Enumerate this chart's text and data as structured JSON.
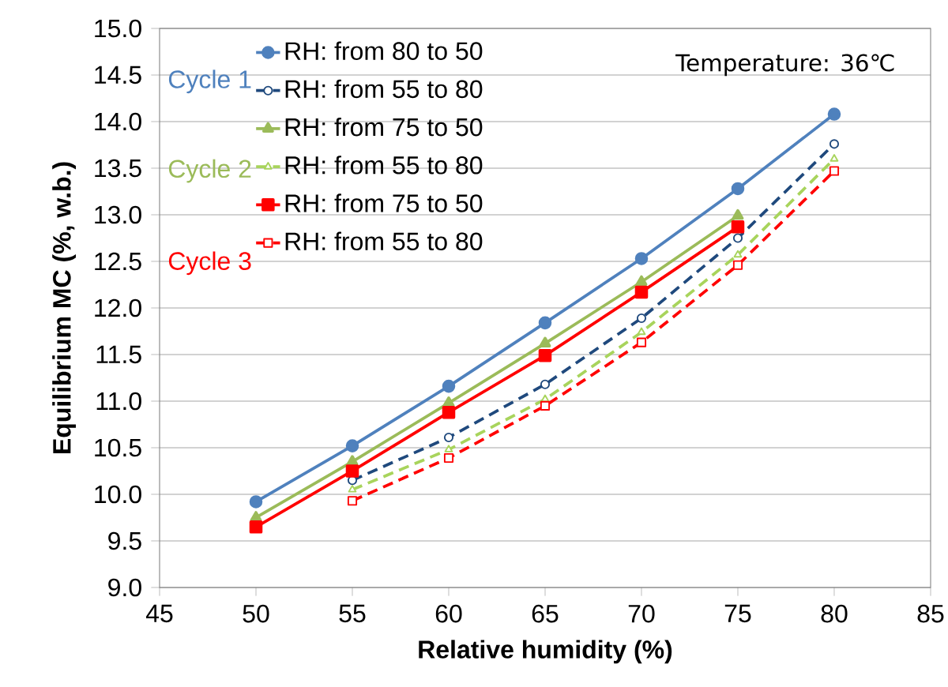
{
  "chart_data": {
    "type": "line",
    "xlabel": "Relative humidity (%)",
    "ylabel": "Equilibrium MC (%, w.b.)",
    "xlim": [
      45,
      85
    ],
    "xticks": [
      45,
      50,
      55,
      60,
      65,
      70,
      75,
      80,
      85
    ],
    "ylim": [
      9.0,
      15.0
    ],
    "yticks": [
      {
        "value": 9.0,
        "label": "9.0"
      },
      {
        "value": 9.5,
        "label": "9.5"
      },
      {
        "value": 10.0,
        "label": "10.0"
      },
      {
        "value": 10.5,
        "label": "10.5"
      },
      {
        "value": 11.0,
        "label": "11.0"
      },
      {
        "value": 11.5,
        "label": "11.5"
      },
      {
        "value": 12.0,
        "label": "12.0"
      },
      {
        "value": 12.5,
        "label": "12.5"
      },
      {
        "value": 13.0,
        "label": "13.0"
      },
      {
        "value": 13.5,
        "label": "13.5"
      },
      {
        "value": 14.0,
        "label": "14.0"
      },
      {
        "value": 14.5,
        "label": "14.5"
      },
      {
        "value": 15.0,
        "label": "15.0"
      }
    ],
    "grid": "y",
    "legend": "top left",
    "annotations": [
      "Cycle 1",
      "Cycle 2",
      "Cycle 3",
      "Temperature: 36℃"
    ],
    "series": [
      {
        "name": "RH: from 80 to 50",
        "color": "#4f81bd",
        "marker": "circle",
        "line_style": "solid",
        "x": [
          50,
          55,
          60,
          65,
          70,
          75,
          80
        ],
        "values": [
          9.92,
          10.52,
          11.16,
          11.84,
          12.53,
          13.28,
          14.08
        ]
      },
      {
        "name": "RH: from 55 to 80",
        "color": "#1f497d",
        "marker": "circle",
        "line_style": "dashed",
        "x": [
          55,
          60,
          65,
          70,
          75,
          80
        ],
        "values": [
          10.15,
          10.61,
          11.18,
          11.89,
          12.75,
          13.76
        ]
      },
      {
        "name": "RH: from 75 to 50",
        "color": "#9bbb59",
        "marker": "triangle",
        "line_style": "solid",
        "x": [
          50,
          55,
          60,
          65,
          70,
          75
        ],
        "values": [
          9.75,
          10.35,
          10.98,
          11.62,
          12.28,
          12.99
        ]
      },
      {
        "name": "RH: from 55 to 80",
        "color": "#a8d45c",
        "marker": "triangle",
        "line_style": "dashed",
        "x": [
          55,
          60,
          65,
          70,
          75,
          80
        ],
        "values": [
          10.05,
          10.48,
          11.02,
          11.74,
          12.57,
          13.6
        ]
      },
      {
        "name": "RH: from 75 to 50",
        "color": "#ff0000",
        "marker": "square",
        "line_style": "solid",
        "x": [
          50,
          55,
          60,
          65,
          70,
          75
        ],
        "values": [
          9.65,
          10.25,
          10.88,
          11.49,
          12.17,
          12.87
        ]
      },
      {
        "name": "RH: from 55 to 80",
        "color": "#ff0000",
        "marker": "square",
        "line_style": "dashed",
        "x": [
          55,
          60,
          65,
          70,
          75,
          80
        ],
        "values": [
          9.93,
          10.39,
          10.95,
          11.63,
          12.46,
          13.47
        ]
      }
    ]
  }
}
